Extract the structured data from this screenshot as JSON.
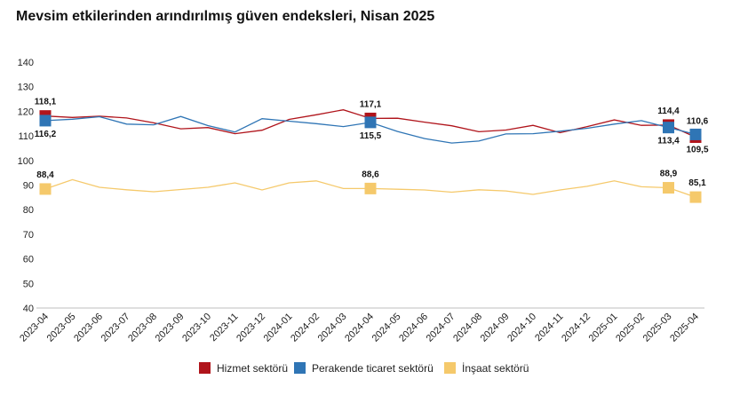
{
  "title": "Mevsim etkilerinden arındırılmış güven endeksleri, Nisan 2025",
  "chart_data": {
    "type": "line",
    "title": "Mevsim etkilerinden arındırılmış güven endeksleri, Nisan 2025",
    "xlabel": "",
    "ylabel": "",
    "ylim": [
      40,
      140
    ],
    "yticks": [
      40,
      50,
      60,
      70,
      80,
      90,
      100,
      110,
      120,
      130,
      140
    ],
    "grid": false,
    "legend_position": "bottom",
    "categories": [
      "2023-04",
      "2023-05",
      "2023-06",
      "2023-07",
      "2023-08",
      "2023-09",
      "2023-10",
      "2023-11",
      "2023-12",
      "2024-01",
      "2024-02",
      "2024-03",
      "2024-04",
      "2024-05",
      "2024-06",
      "2024-07",
      "2024-08",
      "2024-09",
      "2024-10",
      "2024-11",
      "2024-12",
      "2025-01",
      "2025-02",
      "2025-03",
      "2025-04"
    ],
    "series": [
      {
        "name": "Hizmet sektörü",
        "color": "#b0141b",
        "values": [
          118.1,
          117.5,
          118.0,
          117.3,
          115.3,
          112.9,
          113.4,
          110.9,
          112.3,
          116.7,
          118.6,
          120.6,
          117.1,
          117.2,
          115.6,
          114.1,
          111.7,
          112.4,
          114.3,
          111.3,
          113.8,
          116.5,
          114.3,
          114.4,
          109.5
        ],
        "markers": [
          0,
          12,
          23,
          24
        ],
        "marker_labels": [
          "118,1",
          "117,1",
          "114,4",
          "109,5"
        ]
      },
      {
        "name": "Perakende ticaret sektörü",
        "color": "#2f75b5",
        "values": [
          116.2,
          116.8,
          117.8,
          114.8,
          114.5,
          117.9,
          114.2,
          111.6,
          117.0,
          116.0,
          115.0,
          113.8,
          115.5,
          111.8,
          108.9,
          107.1,
          107.9,
          110.8,
          110.9,
          111.9,
          113.1,
          114.8,
          116.2,
          113.4,
          110.6
        ],
        "markers": [
          0,
          12,
          23,
          24
        ],
        "marker_labels": [
          "116,2",
          "115,5",
          "113,4",
          "110,6"
        ]
      },
      {
        "name": "İnşaat sektörü",
        "color": "#f5c96b",
        "values": [
          88.4,
          92.2,
          89.1,
          88.1,
          87.3,
          88.2,
          89.1,
          90.9,
          88.0,
          90.9,
          91.7,
          88.6,
          88.6,
          88.3,
          88.0,
          87.1,
          88.1,
          87.6,
          86.2,
          88.0,
          89.5,
          91.7,
          89.3,
          88.9,
          85.1
        ],
        "markers": [
          0,
          12,
          23,
          24
        ],
        "marker_labels": [
          "88,4",
          "88,6",
          "88,9",
          "85,1"
        ]
      }
    ]
  }
}
